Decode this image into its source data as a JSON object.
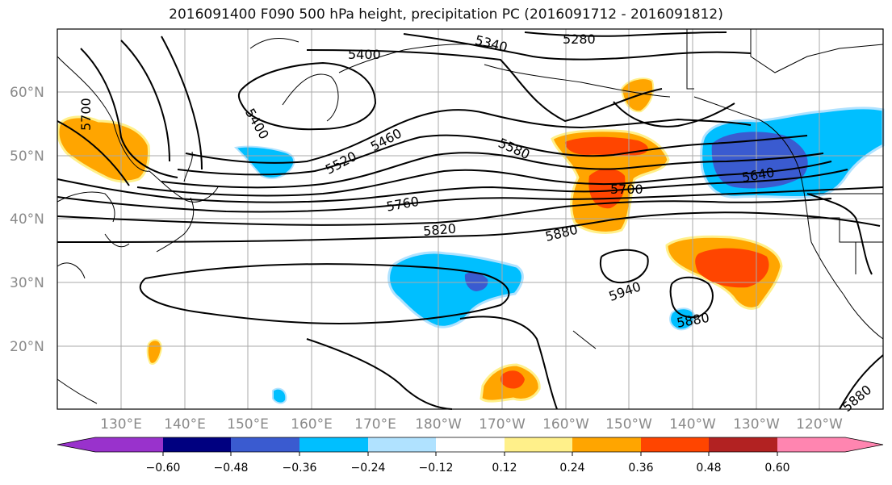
{
  "title": "2016091400 F090 500 hPa height, precipitation PC (2016091712 - 2016091812)",
  "axes": {
    "lon_labels": [
      "130°E",
      "140°E",
      "150°E",
      "160°E",
      "170°E",
      "180°W",
      "170°W",
      "160°W",
      "150°W",
      "140°W",
      "130°W",
      "120°W"
    ],
    "lat_labels": [
      "60°N",
      "50°N",
      "40°N",
      "30°N",
      "20°N"
    ]
  },
  "contour_labels": [
    "5280",
    "5340",
    "5400",
    "5400",
    "5460",
    "5520",
    "5580",
    "5640",
    "5700",
    "5760",
    "5820",
    "5880",
    "5940",
    "5880",
    "5880",
    "5700"
  ],
  "colorbar": {
    "tick_labels": [
      "−0.60",
      "−0.48",
      "−0.36",
      "−0.24",
      "−0.12",
      "0.12",
      "0.24",
      "0.36",
      "0.48",
      "0.60"
    ],
    "colors": [
      "#9932cc",
      "#000080",
      "#3a5bd0",
      "#00bfff",
      "#b0e2ff",
      "#ffffff",
      "#fff08a",
      "#ffa500",
      "#ff4500",
      "#b22222",
      "#ff85b0"
    ]
  },
  "colors": {
    "orange": "#ffa500",
    "red": "#ff4500",
    "yellow": "#fff08a",
    "sky": "#00bfff",
    "light_blue": "#b0e2ff",
    "royal": "#3a5bd0",
    "grid": "#aaaaaa"
  }
}
